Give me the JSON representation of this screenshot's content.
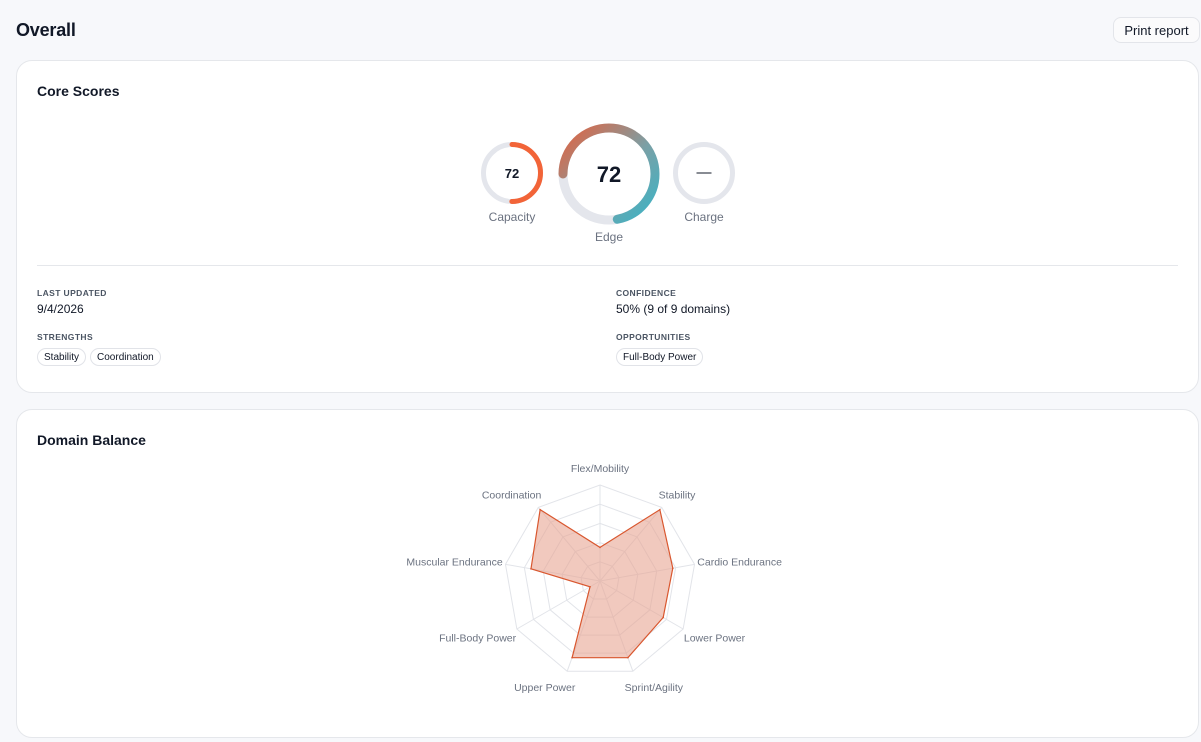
{
  "header": {
    "title": "Overall",
    "print_label": "Print report"
  },
  "core_scores": {
    "title": "Core Scores",
    "gauges": [
      {
        "id": "capacity",
        "label": "Capacity",
        "value_text": "72",
        "fill": 0.72,
        "color": "#f26438"
      },
      {
        "id": "edge",
        "label": "Edge",
        "value_text": "72",
        "fill": 0.72,
        "color_start": "#3bb4c6",
        "color_end": "#e3623f"
      },
      {
        "id": "charge",
        "label": "Charge",
        "value_text": "—",
        "fill": 0
      }
    ],
    "last_updated_label": "LAST UPDATED",
    "last_updated_value": "9/4/2026",
    "confidence_label": "CONFIDENCE",
    "confidence_value": "50% (9 of 9 domains)",
    "strengths_label": "STRENGTHS",
    "strengths": [
      "Stability",
      "Coordination"
    ],
    "opportunities_label": "OPPORTUNITIES",
    "opportunities": [
      "Full-Body Power"
    ]
  },
  "domain_balance": {
    "title": "Domain Balance"
  },
  "chart_data": {
    "type": "radar",
    "title": "Domain Balance",
    "axes": [
      "Flex/Mobility",
      "Stability",
      "Cardio Endurance",
      "Lower Power",
      "Sprint/Agility",
      "Upper Power",
      "Full-Body Power",
      "Muscular Endurance",
      "Coordination"
    ],
    "values": [
      0.35,
      0.97,
      0.77,
      0.76,
      0.85,
      0.85,
      0.12,
      0.73,
      0.97
    ],
    "range": [
      0,
      1
    ],
    "rings": 5,
    "fill_color": "#e8a593",
    "stroke_color": "#d9572f",
    "grid": true
  },
  "colors": {
    "background": "#f7f8fb",
    "card": "#ffffff",
    "track": "#e4e6ec",
    "accent": "#f26438"
  }
}
